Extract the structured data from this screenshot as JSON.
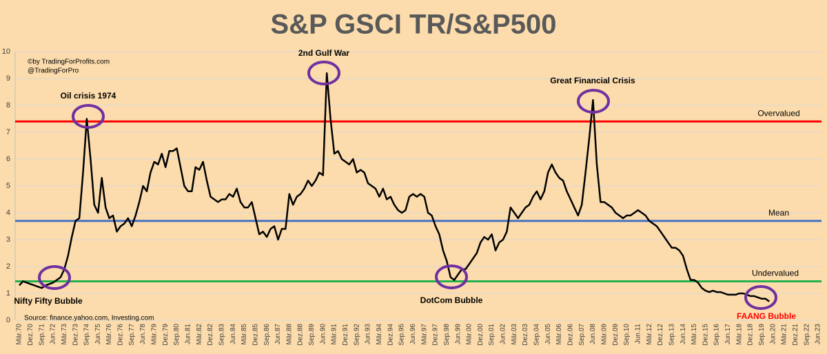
{
  "chart_data": {
    "type": "line",
    "title": "S&P GSCI TR/S&P500",
    "credits": [
      "©by TradingForProfits.com",
      "@TradingForPro"
    ],
    "source": "Source: finance.yahoo.com, Investing.com",
    "categories": [
      "Mär.70",
      null,
      null,
      "Dez.70",
      null,
      null,
      "Sep.71",
      null,
      null,
      "Jun.72",
      null,
      null,
      "Mär.73",
      null,
      null,
      "Dez.73",
      null,
      null,
      "Sep.74",
      null,
      null,
      "Jun.75",
      null,
      null,
      "Mär.76",
      null,
      null,
      "Dez.76",
      null,
      null,
      "Sep.77",
      null,
      null,
      "Jun.78",
      null,
      null,
      "Mär.79",
      null,
      null,
      "Dez.79",
      null,
      null,
      "Sep.80",
      null,
      null,
      "Jun.81",
      null,
      null,
      "Mär.82",
      null,
      null,
      "Dez.82",
      null,
      null,
      "Sep.83",
      null,
      null,
      "Jun.84",
      null,
      null,
      "Mär.85",
      null,
      null,
      "Dez.85",
      null,
      null,
      "Sep.86",
      null,
      null,
      "Jun.87",
      null,
      null,
      "Mär.88",
      null,
      null,
      "Dez.88",
      null,
      null,
      "Sep.89",
      null,
      null,
      "Jun.90",
      null,
      null,
      "Mär.91",
      null,
      null,
      "Dez.91",
      null,
      null,
      "Sep.92",
      null,
      null,
      "Jun.93",
      null,
      null,
      "Mär.94",
      null,
      null,
      "Dez.94",
      null,
      null,
      "Sep.95",
      null,
      null,
      "Jun.96",
      null,
      null,
      "Mär.97",
      null,
      null,
      "Dez.97",
      null,
      null,
      "Sep.98",
      null,
      null,
      "Jun.99",
      null,
      null,
      "Mär.00",
      null,
      null,
      "Dez.00",
      null,
      null,
      "Sep.01",
      null,
      null,
      "Jun.02",
      null,
      null,
      "Mär.03",
      null,
      null,
      "Dez.03",
      null,
      null,
      "Sep.04",
      null,
      null,
      "Jun.05",
      null,
      null,
      "Mär.06",
      null,
      null,
      "Dez.06",
      null,
      null,
      "Sep.07",
      null,
      null,
      "Jun.08",
      null,
      null,
      "Mär.09",
      null,
      null,
      "Dez.09",
      null,
      null,
      "Sep.10",
      null,
      null,
      "Jun.11",
      null,
      null,
      "Mär.12",
      null,
      null,
      "Dez.12",
      null,
      null,
      "Sep.13",
      null,
      null,
      "Jun.14",
      null,
      null,
      "Mär.15",
      null,
      null,
      "Dez.15",
      null,
      null,
      "Sep.16",
      null,
      null,
      "Jun.17",
      null,
      null,
      "Mär.18",
      null,
      null,
      "Dez.18",
      null,
      null,
      "Sep.19",
      null,
      null,
      "Jun.20",
      null,
      null,
      "Mär.21",
      null,
      null,
      "Dez.21",
      null,
      null,
      "Sep.22",
      null,
      null,
      "Jun.23"
    ],
    "series": [
      {
        "name": "S&P GSCI TR/S&P500",
        "color": "#000000",
        "values": [
          1.3,
          1.45,
          1.4,
          1.35,
          1.3,
          1.25,
          1.2,
          1.3,
          1.35,
          1.4,
          1.5,
          1.6,
          1.9,
          2.4,
          3.1,
          3.7,
          3.8,
          5.5,
          7.5,
          6.0,
          4.3,
          4.0,
          5.3,
          4.2,
          3.8,
          3.9,
          3.3,
          3.5,
          3.6,
          3.8,
          3.5,
          3.9,
          4.4,
          5.0,
          4.8,
          5.5,
          5.9,
          5.8,
          6.2,
          5.7,
          6.3,
          6.3,
          6.4,
          5.7,
          5.0,
          4.8,
          4.8,
          5.7,
          5.6,
          5.9,
          5.2,
          4.6,
          4.5,
          4.4,
          4.5,
          4.5,
          4.7,
          4.6,
          4.9,
          4.4,
          4.2,
          4.2,
          4.4,
          3.8,
          3.2,
          3.3,
          3.1,
          3.4,
          3.5,
          3.0,
          3.4,
          3.4,
          4.7,
          4.3,
          4.6,
          4.7,
          4.9,
          5.2,
          5.0,
          5.2,
          5.5,
          5.4,
          9.2,
          7.5,
          6.2,
          6.3,
          6.0,
          5.9,
          5.8,
          6.0,
          5.5,
          5.6,
          5.5,
          5.1,
          5.0,
          4.9,
          4.6,
          4.9,
          4.5,
          4.6,
          4.3,
          4.1,
          4.0,
          4.1,
          4.6,
          4.7,
          4.6,
          4.7,
          4.6,
          4.0,
          3.9,
          3.5,
          3.2,
          2.6,
          2.2,
          1.6,
          1.5,
          1.7,
          1.9,
          1.9,
          2.1,
          2.3,
          2.5,
          2.9,
          3.1,
          3.0,
          3.2,
          2.6,
          2.9,
          3.0,
          3.3,
          4.2,
          4.0,
          3.8,
          4.0,
          4.2,
          4.3,
          4.6,
          4.8,
          4.5,
          4.8,
          5.5,
          5.8,
          5.5,
          5.3,
          5.2,
          4.8,
          4.5,
          4.2,
          3.9,
          4.3,
          5.5,
          6.8,
          8.2,
          5.8,
          4.4,
          4.4,
          4.3,
          4.2,
          4.0,
          3.9,
          3.8,
          3.9,
          3.9,
          4.0,
          4.1,
          4.0,
          3.9,
          3.7,
          3.6,
          3.5,
          3.3,
          3.1,
          2.9,
          2.7,
          2.7,
          2.6,
          2.4,
          1.9,
          1.5,
          1.5,
          1.4,
          1.2,
          1.1,
          1.05,
          1.1,
          1.05,
          1.05,
          1.0,
          0.95,
          0.95,
          0.95,
          1.0,
          1.0,
          0.95,
          0.9,
          0.9,
          0.85,
          0.8,
          0.8,
          0.7,
          null,
          null,
          null,
          null,
          null,
          null,
          null,
          null,
          null,
          null,
          null,
          null,
          null
        ]
      }
    ],
    "reference_lines": [
      {
        "label": "Overvalued",
        "value": 7.4,
        "color": "#ff0000"
      },
      {
        "label": "Mean",
        "value": 3.7,
        "color": "#4472c4"
      },
      {
        "label": "Undervalued",
        "value": 1.45,
        "color": "#22b14c"
      }
    ],
    "annotations": [
      "Oil crisis 1974",
      "2nd Gulf War",
      "Great Financial Crisis",
      "Nifty Fifty Bubble",
      "DotCom Bubble",
      "FAANG Bubble"
    ],
    "ylim": [
      0,
      10
    ],
    "yticks": [
      0,
      1,
      2,
      3,
      4,
      5,
      6,
      7,
      8,
      9,
      10
    ],
    "grid": true
  }
}
